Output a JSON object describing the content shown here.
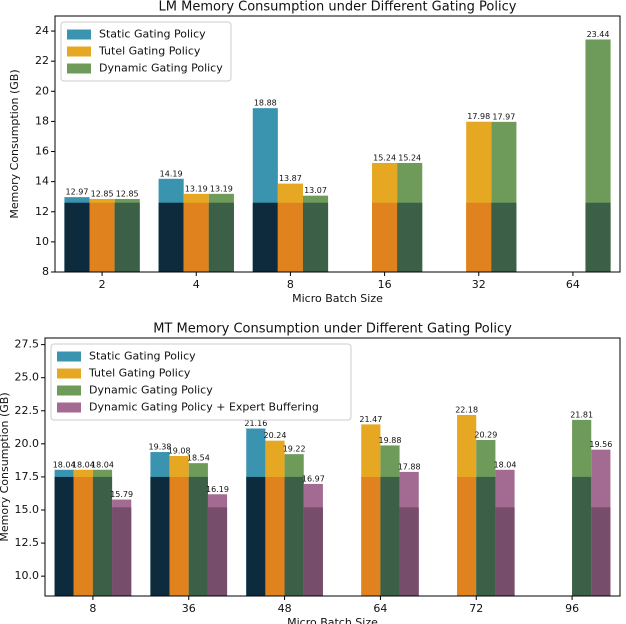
{
  "chart_data": [
    {
      "type": "bar",
      "title": "LM Memory Consumption under Different Gating Policy",
      "x_label": "Micro Batch Size",
      "y_label": "Memory Consumption (GB)",
      "categories": [
        "2",
        "4",
        "8",
        "16",
        "32",
        "64"
      ],
      "series": [
        {
          "name": "Static Gating Policy",
          "color": "#3a94b0",
          "base_color": "#0e2a3d",
          "values": [
            12.97,
            14.19,
            18.88,
            null,
            null,
            null
          ],
          "base_values": [
            12.6,
            12.6,
            12.6,
            null,
            null,
            null
          ]
        },
        {
          "name": "Tutel Gating Policy",
          "color": "#e6a823",
          "base_color": "#e0831f",
          "values": [
            12.85,
            13.19,
            13.87,
            15.24,
            17.98,
            null
          ],
          "base_values": [
            12.6,
            12.6,
            12.6,
            12.6,
            12.6,
            null
          ]
        },
        {
          "name": "Dynamic Gating Policy",
          "color": "#6e9a5a",
          "base_color": "#3b5f47",
          "values": [
            12.85,
            13.19,
            13.07,
            15.24,
            17.97,
            23.44
          ],
          "base_values": [
            12.6,
            12.6,
            12.6,
            12.6,
            12.6,
            12.6
          ]
        }
      ],
      "ylim": [
        8,
        25
      ],
      "yticks": [
        8,
        10,
        12,
        14,
        16,
        18,
        20,
        22,
        24
      ],
      "legend": "upper left"
    },
    {
      "type": "bar",
      "title": "MT Memory Consumption under Different Gating Policy",
      "x_label": "Micro Batch Size",
      "y_label": "Memory Consumption (GB)",
      "categories": [
        "8",
        "36",
        "48",
        "64",
        "72",
        "96"
      ],
      "series": [
        {
          "name": "Static Gating Policy",
          "color": "#3a94b0",
          "base_color": "#0e2a3d",
          "values": [
            18.04,
            19.38,
            21.16,
            null,
            null,
            null
          ],
          "base_values": [
            17.5,
            17.5,
            17.5,
            null,
            null,
            null
          ]
        },
        {
          "name": "Tutel Gating Policy",
          "color": "#e6a823",
          "base_color": "#e0831f",
          "values": [
            18.04,
            19.08,
            20.24,
            21.47,
            22.18,
            null
          ],
          "base_values": [
            17.5,
            17.5,
            17.5,
            17.5,
            17.5,
            null
          ]
        },
        {
          "name": "Dynamic Gating Policy",
          "color": "#6e9a5a",
          "base_color": "#3b5f47",
          "values": [
            18.04,
            18.54,
            19.22,
            19.88,
            20.29,
            21.81
          ],
          "base_values": [
            17.5,
            17.5,
            17.5,
            17.5,
            17.5,
            17.5
          ]
        },
        {
          "name": "Dynamic Gating Policy + Expert Buffering",
          "color": "#a46b92",
          "base_color": "#774d6c",
          "values": [
            15.79,
            16.19,
            16.97,
            17.88,
            18.04,
            19.56
          ],
          "base_values": [
            15.2,
            15.2,
            15.2,
            15.2,
            15.2,
            15.2
          ]
        }
      ],
      "ylim": [
        8.5,
        28
      ],
      "yticks": [
        {
          "value": 10,
          "label": "10.0"
        },
        12.5,
        {
          "value": 15,
          "label": "15.0"
        },
        17.5,
        {
          "value": 20,
          "label": "20.0"
        },
        22.5,
        {
          "value": 25,
          "label": "25.0"
        },
        27.5
      ],
      "legend": "upper left"
    }
  ]
}
